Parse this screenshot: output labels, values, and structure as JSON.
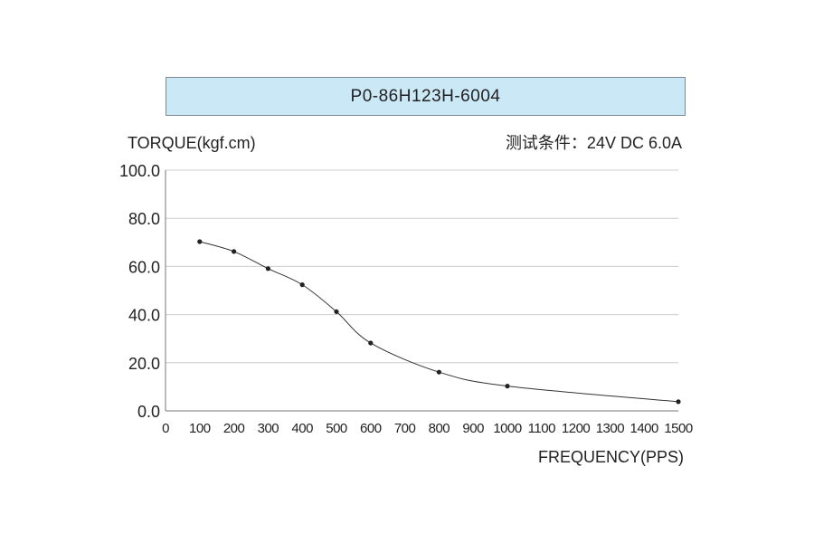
{
  "chart_data": {
    "type": "line",
    "title": "P0-86H123H-6004",
    "ylabel": "TORQUE(kgf.cm)",
    "xlabel": "FREQUENCY(PPS)",
    "test_condition": "测试条件：24V DC  6.0A",
    "xlim": [
      0,
      1500
    ],
    "ylim": [
      0,
      100
    ],
    "x_ticks": [
      0,
      100,
      200,
      300,
      400,
      500,
      600,
      700,
      800,
      900,
      1000,
      1100,
      1200,
      1300,
      1400,
      1500
    ],
    "y_ticks": [
      {
        "value": 0,
        "label": "0.0"
      },
      {
        "value": 20,
        "label": "20.0"
      },
      {
        "value": 40,
        "label": "40.0"
      },
      {
        "value": 60,
        "label": "60.0"
      },
      {
        "value": 80,
        "label": "80.0"
      },
      {
        "value": 100,
        "label": "100.0"
      }
    ],
    "grid": "horizontal",
    "series": [
      {
        "x": [
          100,
          200,
          300,
          400,
          500,
          600,
          800,
          1000,
          1500
        ],
        "y": [
          70.3,
          66.2,
          59.1,
          52.4,
          41.2,
          28.2,
          16.1,
          10.3,
          3.8
        ]
      }
    ],
    "colors": {
      "line": "#333333",
      "marker": "#222222",
      "grid": "#cccccc",
      "axis": "#777777"
    }
  }
}
